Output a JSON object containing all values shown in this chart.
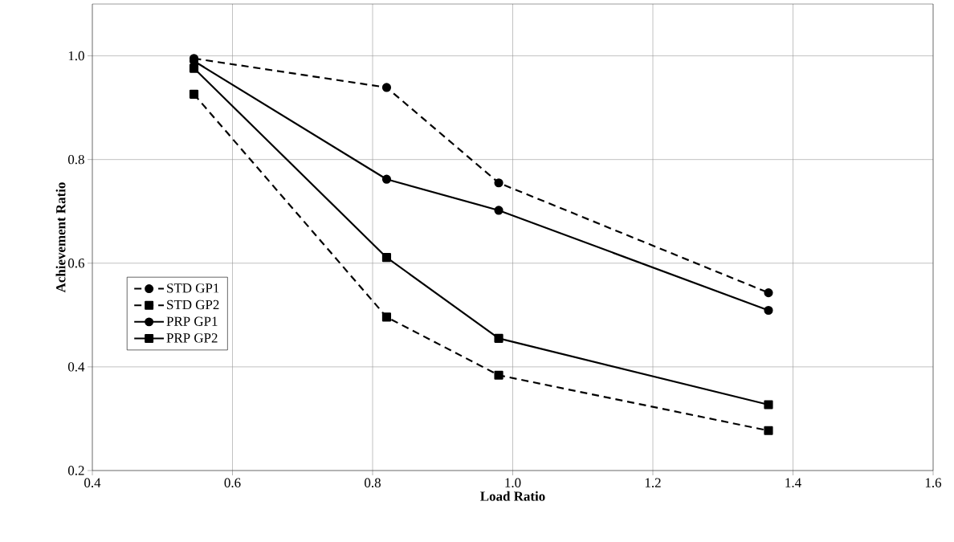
{
  "chart_data": {
    "type": "line",
    "xlabel": "Load Ratio",
    "ylabel": "Achievement Ratio",
    "xlim": [
      0.4,
      1.6
    ],
    "xticks": [
      {
        "value": 0.4,
        "label": "0.4"
      },
      {
        "value": 0.6,
        "label": "0.6"
      },
      {
        "value": 0.8,
        "label": "0.8"
      },
      {
        "value": 1.0,
        "label": "1.0"
      },
      {
        "value": 1.2,
        "label": "1.2"
      },
      {
        "value": 1.4,
        "label": "1.4"
      },
      {
        "value": 1.6,
        "label": "1.6"
      }
    ],
    "ylim": [
      0.2,
      1.1
    ],
    "yticks": [
      {
        "value": 0.2,
        "label": "0.2"
      },
      {
        "value": 0.4,
        "label": "0.4"
      },
      {
        "value": 0.6,
        "label": "0.6"
      },
      {
        "value": 0.8,
        "label": "0.8"
      },
      {
        "value": 1.0,
        "label": "1.0"
      }
    ],
    "x": [
      0.545,
      0.82,
      0.98,
      1.365
    ],
    "grid": true,
    "legend": "left",
    "series": [
      {
        "name": "STD GP1",
        "color": "#000000",
        "values": [
          0.995,
          0.939,
          0.755,
          0.543
        ],
        "marker": "circle",
        "line_style": "dashed"
      },
      {
        "name": "STD GP2",
        "color": "#000000",
        "values": [
          0.926,
          0.496,
          0.384,
          0.277
        ],
        "marker": "square",
        "line_style": "dashed"
      },
      {
        "name": "PRP GP1",
        "color": "#000000",
        "values": [
          0.99,
          0.762,
          0.702,
          0.509
        ],
        "marker": "circle",
        "line_style": "solid"
      },
      {
        "name": "PRP GP2",
        "color": "#000000",
        "values": [
          0.976,
          0.611,
          0.455,
          0.327
        ],
        "marker": "square",
        "line_style": "solid"
      }
    ]
  }
}
